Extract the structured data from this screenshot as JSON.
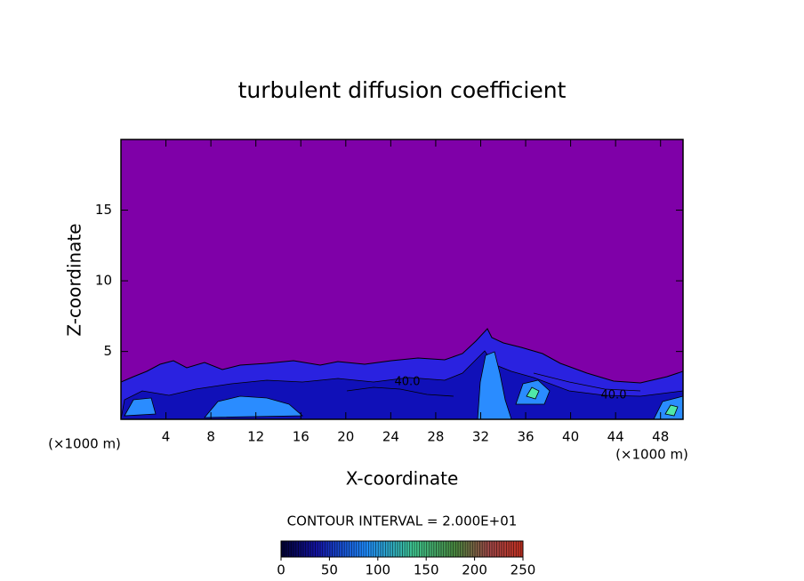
{
  "chart_data": {
    "type": "contour",
    "title": "turbulent diffusion coefficient",
    "x_label": "X-coordinate",
    "y_label": "Z-coordinate",
    "x_unit": "(×1000 m)",
    "y_unit": "(×1000 m)",
    "xlim": [
      0,
      50
    ],
    "xticks": [
      4,
      8,
      12,
      16,
      20,
      24,
      28,
      32,
      36,
      40,
      44,
      48
    ],
    "ylim": [
      0.2,
      20
    ],
    "yticks": [
      5,
      10,
      15
    ],
    "contour_labels": [
      {
        "value": 40,
        "label": "40.0"
      },
      {
        "value": 40,
        "label": "40.0"
      }
    ],
    "contour_interval_label": "CONTOUR INTERVAL = 2.000E+01",
    "background_color": "#7f00a8",
    "colorbar": {
      "lim": [
        0,
        250
      ],
      "ticks": [
        0,
        50,
        100,
        150,
        200,
        250
      ]
    }
  }
}
